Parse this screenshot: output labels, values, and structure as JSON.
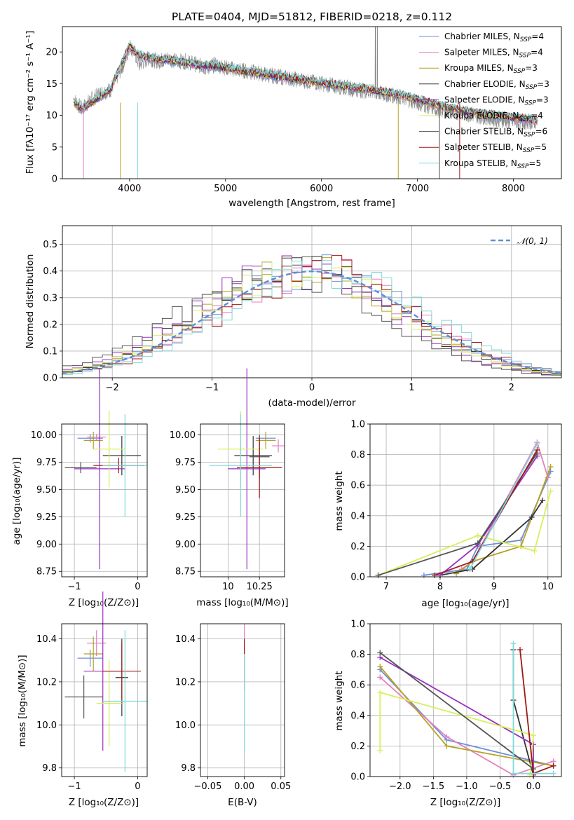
{
  "colors": [
    "#6b8fd9",
    "#e67fbf",
    "#b8a020",
    "#333333",
    "#9a2ec0",
    "#d6f05a",
    "#555555",
    "#a01818",
    "#7fdada"
  ],
  "chart_data": [
    {
      "id": "spectrum",
      "type": "line",
      "title": "PLATE=0404, MJD=51812, FIBERID=0218, z=0.112",
      "xlabel": "wavelength [Angstrom, rest frame]",
      "ylabel": "Flux [fλ10⁻¹⁷ erg cm⁻² s⁻¹ A⁻¹]",
      "xlim": [
        3300,
        8500
      ],
      "ylim": [
        0,
        24
      ],
      "xticks": [
        4000,
        5000,
        6000,
        7000,
        8000
      ],
      "yticks": [
        0,
        5,
        10,
        15,
        20
      ],
      "legend_position": "upper right",
      "legend": [
        "Chabrier MILES, N_SSP=4",
        "Salpeter MILES, N_SSP=4",
        "Kroupa MILES, N_SSP=3",
        "Chabrier ELODIE, N_SSP=3",
        "Salpeter ELODIE, N_SSP=3",
        "Kroupa ELODIE, N_SSP=4",
        "Chabrier STELIB, N_SSP=6",
        "Salpeter STELIB, N_SSP=5",
        "Kroupa STELIB, N_SSP=5"
      ],
      "data_color": "#888888",
      "observed": {
        "x": [
          3420,
          3500,
          3600,
          3700,
          3800,
          3900,
          3950,
          4000,
          4050,
          4100,
          4200,
          4300,
          4400,
          4500,
          4600,
          4700,
          4800,
          4900,
          5000,
          5200,
          5400,
          5600,
          5800,
          6000,
          6200,
          6400,
          6600,
          6800,
          7000,
          7200,
          7400,
          7600,
          7800,
          8000,
          8250
        ],
        "y": [
          12.5,
          11.0,
          12.5,
          13.5,
          14.0,
          17.0,
          18.5,
          21.0,
          20.0,
          18.0,
          19.0,
          18.5,
          19.0,
          18.5,
          18.5,
          18.0,
          17.5,
          18.0,
          17.5,
          17.0,
          16.5,
          16.0,
          15.5,
          15.0,
          14.5,
          14.0,
          13.5,
          13.0,
          12.0,
          11.0,
          10.5,
          10.0,
          9.5,
          9.0,
          9.0
        ]
      },
      "model": {
        "x": [
          3420,
          3500,
          3600,
          3700,
          3800,
          3900,
          4000,
          4100,
          4200,
          4300,
          4400,
          4500,
          4700,
          4900,
          5200,
          5500,
          5800,
          6100,
          6400,
          6700,
          7000,
          7300,
          7600,
          7900,
          8250
        ],
        "y": [
          12.2,
          11.0,
          12.0,
          13.0,
          14.0,
          17.5,
          21.0,
          19.5,
          19.2,
          18.8,
          18.8,
          18.6,
          18.0,
          17.8,
          17.0,
          16.3,
          15.6,
          14.9,
          14.3,
          13.6,
          12.6,
          11.3,
          10.4,
          9.9,
          9.2
        ]
      }
    },
    {
      "id": "residuals",
      "type": "line",
      "xlabel": "(data-model)/error",
      "ylabel": "Normed distribution",
      "xlim": [
        -2.5,
        2.5
      ],
      "ylim": [
        0,
        0.57
      ],
      "xticks": [
        -2,
        -1,
        0,
        1,
        2
      ],
      "yticks": [
        0.0,
        0.1,
        0.2,
        0.3,
        0.4,
        0.5
      ],
      "legend_position": "upper right",
      "reference_curve": {
        "label": "𝒩(0, 1)",
        "style": "dashed",
        "color": "#5b8fd9",
        "mean": 0,
        "sigma": 1
      },
      "bin_width": 0.1,
      "series_peak_shift": [
        0.0,
        0.05,
        -0.05,
        -0.1,
        -0.2,
        -0.1,
        -0.3,
        0.1,
        0.15
      ]
    },
    {
      "id": "age-vs-Z",
      "type": "scatter",
      "xlabel": "Z [log₁₀(Z/Z⊙)]",
      "ylabel": "age  [log₁₀(age/yr)]",
      "xlim": [
        -1.2,
        0.15
      ],
      "ylim": [
        8.7,
        10.1
      ],
      "xticks": [
        -1,
        0
      ],
      "yticks": [
        8.75,
        9.0,
        9.25,
        9.5,
        9.75,
        10.0
      ],
      "points": [
        {
          "series": 0,
          "x": -0.75,
          "y": 9.97,
          "xerr": 0.2,
          "yerr": 0.04
        },
        {
          "series": 1,
          "x": -0.65,
          "y": 9.98,
          "xerr": 0.15,
          "yerr": 0.03
        },
        {
          "series": 2,
          "x": -0.7,
          "y": 9.95,
          "xerr": 0.15,
          "yerr": 0.08
        },
        {
          "series": 3,
          "x": -0.25,
          "y": 9.81,
          "xerr": 0.3,
          "yerr": 0.18
        },
        {
          "series": 4,
          "x": -0.6,
          "y": 9.69,
          "xerr": 0.4,
          "yerr": 0.92
        },
        {
          "series": 5,
          "x": -0.45,
          "y": 9.87,
          "xerr": 0.25,
          "yerr": 0.35
        },
        {
          "series": 6,
          "x": -0.9,
          "y": 9.7,
          "xerr": 0.25,
          "yerr": 0.05
        },
        {
          "series": 7,
          "x": -0.3,
          "y": 9.72,
          "xerr": 0.4,
          "yerr": 0.07
        },
        {
          "series": 8,
          "x": -0.2,
          "y": 9.72,
          "xerr": 0.35,
          "yerr": 0.47
        }
      ]
    },
    {
      "id": "age-vs-mass",
      "type": "scatter",
      "xlabel": "mass [log₁₀(M/M⊙)]",
      "ylabel": "",
      "xlim": [
        9.78,
        10.45
      ],
      "ylim": [
        8.7,
        10.1
      ],
      "xticks": [
        10.0,
        10.25
      ],
      "yticks": [
        8.75,
        9.0,
        9.25,
        9.5,
        9.75,
        10.0
      ],
      "points": [
        {
          "series": 0,
          "x": 10.3,
          "y": 9.97,
          "xerr": 0.08,
          "yerr": 0.04
        },
        {
          "series": 1,
          "x": 10.4,
          "y": 9.9,
          "xerr": 0.05,
          "yerr": 0.06
        },
        {
          "series": 2,
          "x": 10.3,
          "y": 9.95,
          "xerr": 0.08,
          "yerr": 0.08
        },
        {
          "series": 3,
          "x": 10.2,
          "y": 9.81,
          "xerr": 0.15,
          "yerr": 0.18
        },
        {
          "series": 4,
          "x": 10.15,
          "y": 9.69,
          "xerr": 0.15,
          "yerr": 0.92
        },
        {
          "series": 5,
          "x": 10.1,
          "y": 9.87,
          "xerr": 0.18,
          "yerr": 0.35
        },
        {
          "series": 6,
          "x": 10.25,
          "y": 9.8,
          "xerr": 0.08,
          "yerr": 0.2
        },
        {
          "series": 7,
          "x": 10.25,
          "y": 9.7,
          "xerr": 0.18,
          "yerr": 0.28
        },
        {
          "series": 8,
          "x": 10.1,
          "y": 9.72,
          "xerr": 0.25,
          "yerr": 0.47
        }
      ]
    },
    {
      "id": "weight-vs-age",
      "type": "line",
      "xlabel": "age  [log₁₀(age/yr)]",
      "ylabel": "mass weight",
      "xlim": [
        6.7,
        10.25
      ],
      "ylim": [
        0,
        1
      ],
      "xticks": [
        7,
        8,
        9,
        10
      ],
      "yticks": [
        0.0,
        0.2,
        0.4,
        0.6,
        0.8,
        1.0
      ],
      "series": [
        {
          "x": [
            7.7,
            8.5,
            8.7,
            9.5,
            10.05
          ],
          "y": [
            0.01,
            0.05,
            0.2,
            0.24,
            0.69
          ]
        },
        {
          "x": [
            8.4,
            8.6,
            9.8,
            10.0
          ],
          "y": [
            0.05,
            0.1,
            0.88,
            0.65
          ]
        },
        {
          "x": [
            8.3,
            8.6,
            9.5,
            10.05
          ],
          "y": [
            0.02,
            0.1,
            0.2,
            0.72
          ]
        },
        {
          "x": [
            8.0,
            8.6,
            9.7,
            9.9
          ],
          "y": [
            0.01,
            0.05,
            0.39,
            0.5
          ]
        },
        {
          "x": [
            8.0,
            8.7,
            9.8
          ],
          "y": [
            0.01,
            0.21,
            0.79
          ]
        },
        {
          "x": [
            6.85,
            8.7,
            9.75,
            10.05
          ],
          "y": [
            0.01,
            0.27,
            0.17,
            0.56
          ]
        },
        {
          "x": [
            6.85,
            8.7,
            9.8
          ],
          "y": [
            0.01,
            0.22,
            0.81
          ]
        },
        {
          "x": [
            7.9,
            8.6,
            9.8
          ],
          "y": [
            0.01,
            0.1,
            0.83
          ]
        },
        {
          "x": [
            8.55,
            9.8
          ],
          "y": [
            0.05,
            0.87
          ]
        }
      ]
    },
    {
      "id": "mass-vs-Z",
      "type": "scatter",
      "xlabel": "Z [log₁₀(Z/Z⊙)]",
      "ylabel": "mass [log₁₀(M/M⊙)]",
      "xlim": [
        -1.2,
        0.15
      ],
      "ylim": [
        9.76,
        10.47
      ],
      "xticks": [
        -1,
        0
      ],
      "yticks": [
        9.8,
        10.0,
        10.2,
        10.4
      ],
      "points": [
        {
          "series": 0,
          "x": -0.75,
          "y": 10.31,
          "xerr": 0.2,
          "yerr": 0.04
        },
        {
          "series": 1,
          "x": -0.65,
          "y": 10.38,
          "xerr": 0.15,
          "yerr": 0.06
        },
        {
          "series": 2,
          "x": -0.7,
          "y": 10.33,
          "xerr": 0.15,
          "yerr": 0.08
        },
        {
          "series": 3,
          "x": -0.25,
          "y": 10.22,
          "xerr": 0.1,
          "yerr": 0.18
        },
        {
          "series": 4,
          "x": -0.55,
          "y": 10.25,
          "xerr": 0.3,
          "yerr": 0.37
        },
        {
          "series": 5,
          "x": -0.45,
          "y": 10.1,
          "xerr": 0.2,
          "yerr": 0.2
        },
        {
          "series": 6,
          "x": -0.85,
          "y": 10.13,
          "xerr": 0.3,
          "yerr": 0.1
        },
        {
          "series": 7,
          "x": -0.25,
          "y": 10.25,
          "xerr": 0.3,
          "yerr": 0.13
        },
        {
          "series": 8,
          "x": -0.2,
          "y": 10.11,
          "xerr": 0.35,
          "yerr": 0.33
        }
      ]
    },
    {
      "id": "mass-vs-EBV",
      "type": "scatter",
      "xlabel": "E(B-V)",
      "ylabel": "",
      "xlim": [
        -0.06,
        0.055
      ],
      "ylim": [
        9.76,
        10.47
      ],
      "xticks": [
        -0.05,
        0.0,
        0.05
      ],
      "xtick_labels": [
        "−0.05",
        "0.00",
        "0.05"
      ],
      "yticks": [
        9.8,
        10.0,
        10.2,
        10.4
      ],
      "points": [
        {
          "series": 1,
          "x": 0.0,
          "y": 10.4,
          "xerr": 0.0,
          "yerr": 0.07
        },
        {
          "series": 7,
          "x": 0.0,
          "y": 10.28,
          "xerr": 0.0,
          "yerr": 0.12
        },
        {
          "series": 8,
          "x": 0.0,
          "y": 10.1,
          "xerr": 0.0,
          "yerr": 0.23
        }
      ]
    },
    {
      "id": "weight-vs-Z",
      "type": "line",
      "xlabel": "Z [log₁₀(Z/Z⊙)]",
      "ylabel": "mass weight",
      "xlim": [
        -2.45,
        0.42
      ],
      "ylim": [
        0,
        1
      ],
      "xticks": [
        -2.0,
        -1.5,
        -1.0,
        -0.5,
        0.0
      ],
      "xtick_labels": [
        "−2.0",
        "−1.5",
        "−1.0",
        "−0.5",
        "0.0"
      ],
      "yticks": [
        0.0,
        0.2,
        0.4,
        0.6,
        0.8,
        1.0
      ],
      "series": [
        {
          "x": [
            -2.3,
            -1.3,
            0.3
          ],
          "y": [
            0.7,
            0.24,
            0.07
          ]
        },
        {
          "x": [
            -2.3,
            -1.3,
            -0.3,
            0.3
          ],
          "y": [
            0.65,
            0.26,
            0.01,
            0.1
          ]
        },
        {
          "x": [
            -2.3,
            -1.3,
            0.3
          ],
          "y": [
            0.72,
            0.2,
            0.07
          ]
        },
        {
          "x": [
            -0.3,
            -0.3,
            0.0
          ],
          "y": [
            0.83,
            0.5,
            0.01
          ]
        },
        {
          "x": [
            -2.3,
            0.0,
            0.0
          ],
          "y": [
            0.78,
            0.21,
            0.01
          ]
        },
        {
          "x": [
            -2.3,
            -2.3,
            0.0,
            -0.05
          ],
          "y": [
            0.17,
            0.55,
            0.27,
            0.01
          ]
        },
        {
          "x": [
            -2.3,
            0.0
          ],
          "y": [
            0.81,
            0.05
          ]
        },
        {
          "x": [
            -0.2,
            0.0,
            0.3
          ],
          "y": [
            0.83,
            0.02,
            0.07
          ]
        },
        {
          "x": [
            -0.3,
            -0.3,
            0.3
          ],
          "y": [
            0.87,
            0.02,
            0.02
          ]
        }
      ]
    }
  ]
}
